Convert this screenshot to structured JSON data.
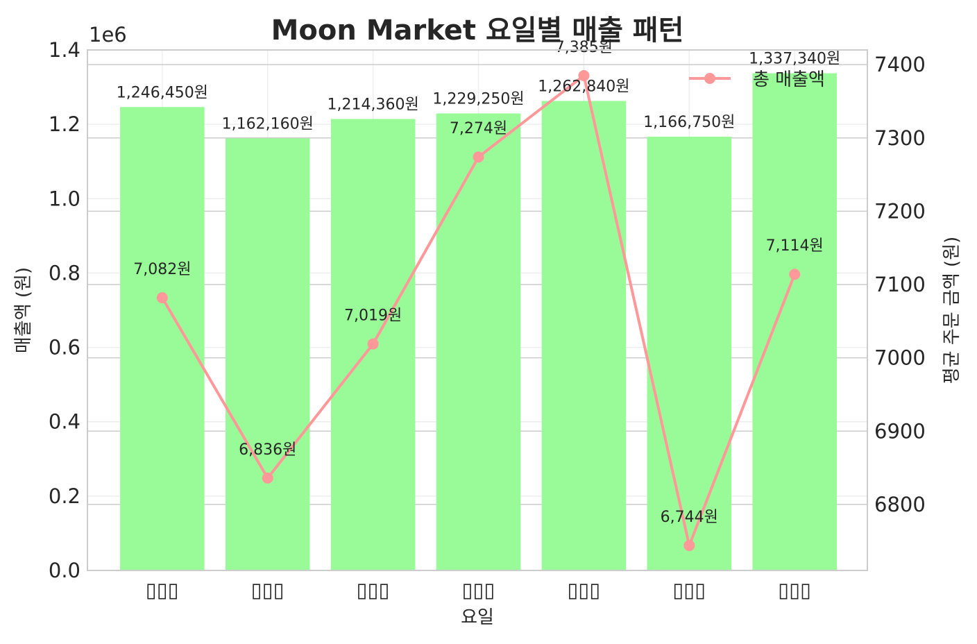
{
  "chart_data": {
    "type": "bar",
    "title": "Moon Market 요일별 매출 패턴",
    "xlabel": "요일",
    "ylabel": "매출액 (원)",
    "y2label": "평균 주문 금액 (원)",
    "y_offset_label": "1e6",
    "categories": [
      "월요일",
      "화요일",
      "수요일",
      "목요일",
      "금요일",
      "토요일",
      "일요일"
    ],
    "category_tick_text": [
      "▯▯▯",
      "▯▯▯",
      "▯▯▯",
      "▯▯▯",
      "▯▯▯",
      "▯▯▯",
      "▯▯▯"
    ],
    "ylim": [
      0,
      1400000
    ],
    "y_ticks": [
      0,
      200000,
      400000,
      600000,
      800000,
      1000000,
      1200000,
      1400000
    ],
    "y_tick_labels": [
      "0.0",
      "0.2",
      "0.4",
      "0.6",
      "0.8",
      "1.0",
      "1.2",
      "1.4"
    ],
    "y2lim": [
      6710,
      7420
    ],
    "y2_ticks": [
      6800,
      6900,
      7000,
      7100,
      7200,
      7300,
      7400
    ],
    "y2_tick_labels": [
      "6800",
      "6900",
      "7000",
      "7100",
      "7200",
      "7300",
      "7400"
    ],
    "grid": true,
    "legend_position": "top-right",
    "series": [
      {
        "name": "",
        "kind": "bar",
        "axis": "left",
        "color": "#98fb98",
        "values": [
          1246450,
          1162160,
          1214360,
          1229250,
          1262840,
          1166750,
          1337340
        ],
        "labels": [
          "1,246,450원",
          "1,162,160원",
          "1,214,360원",
          "1,229,250원",
          "1,262,840원",
          "1,166,750원",
          "1,337,340원"
        ]
      },
      {
        "name": "총 매출액",
        "kind": "line",
        "axis": "right",
        "color": "#ff9999",
        "values": [
          7082,
          6836,
          7019,
          7274,
          7385,
          6744,
          7114
        ],
        "labels": [
          "7,082원",
          "6,836원",
          "7,019원",
          "7,274원",
          "7,385원",
          "6,744원",
          "7,114원"
        ]
      }
    ]
  }
}
